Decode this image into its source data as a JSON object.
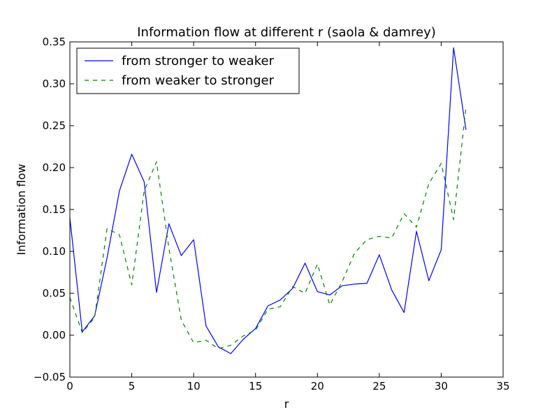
{
  "chart_data": {
    "type": "line",
    "title": "Information flow at different r (saola & damrey)",
    "xlabel": "r",
    "ylabel": "Information flow",
    "xlim": [
      0,
      35
    ],
    "ylim": [
      -0.05,
      0.35
    ],
    "xticks": [
      0,
      5,
      10,
      15,
      20,
      25,
      30,
      35
    ],
    "yticks": [
      -0.05,
      0.0,
      0.05,
      0.1,
      0.15,
      0.2,
      0.25,
      0.3,
      0.35
    ],
    "xtick_labels": [
      "0",
      "5",
      "10",
      "15",
      "20",
      "25",
      "30",
      "35"
    ],
    "ytick_labels": [
      "−0.05",
      "0.00",
      "0.05",
      "0.10",
      "0.15",
      "0.20",
      "0.25",
      "0.30",
      "0.35"
    ],
    "grid": false,
    "legend_position": "top-left",
    "x": [
      0,
      1,
      2,
      3,
      4,
      5,
      6,
      7,
      8,
      9,
      10,
      11,
      12,
      13,
      14,
      15,
      16,
      17,
      18,
      19,
      20,
      21,
      22,
      23,
      24,
      25,
      26,
      27,
      28,
      29,
      30,
      31,
      32
    ],
    "series": [
      {
        "name": "from stronger to weaker",
        "color": "#0000ff",
        "style": "solid",
        "values": [
          0.14,
          0.004,
          0.023,
          0.092,
          0.172,
          0.216,
          0.183,
          0.051,
          0.133,
          0.095,
          0.114,
          0.011,
          -0.014,
          -0.022,
          -0.005,
          0.008,
          0.035,
          0.042,
          0.056,
          0.086,
          0.052,
          0.048,
          0.059,
          0.061,
          0.062,
          0.096,
          0.054,
          0.027,
          0.124,
          0.065,
          0.102,
          0.343,
          0.245
        ]
      },
      {
        "name": "from weaker to stronger",
        "color": "#008000",
        "style": "dashed",
        "values": [
          0.045,
          0.003,
          0.021,
          0.127,
          0.12,
          0.06,
          0.172,
          0.207,
          0.104,
          0.018,
          -0.009,
          -0.006,
          -0.016,
          -0.012,
          -0.001,
          0.006,
          0.031,
          0.034,
          0.058,
          0.05,
          0.085,
          0.036,
          0.064,
          0.098,
          0.114,
          0.118,
          0.116,
          0.145,
          0.129,
          0.181,
          0.205,
          0.138,
          0.272
        ]
      }
    ]
  }
}
